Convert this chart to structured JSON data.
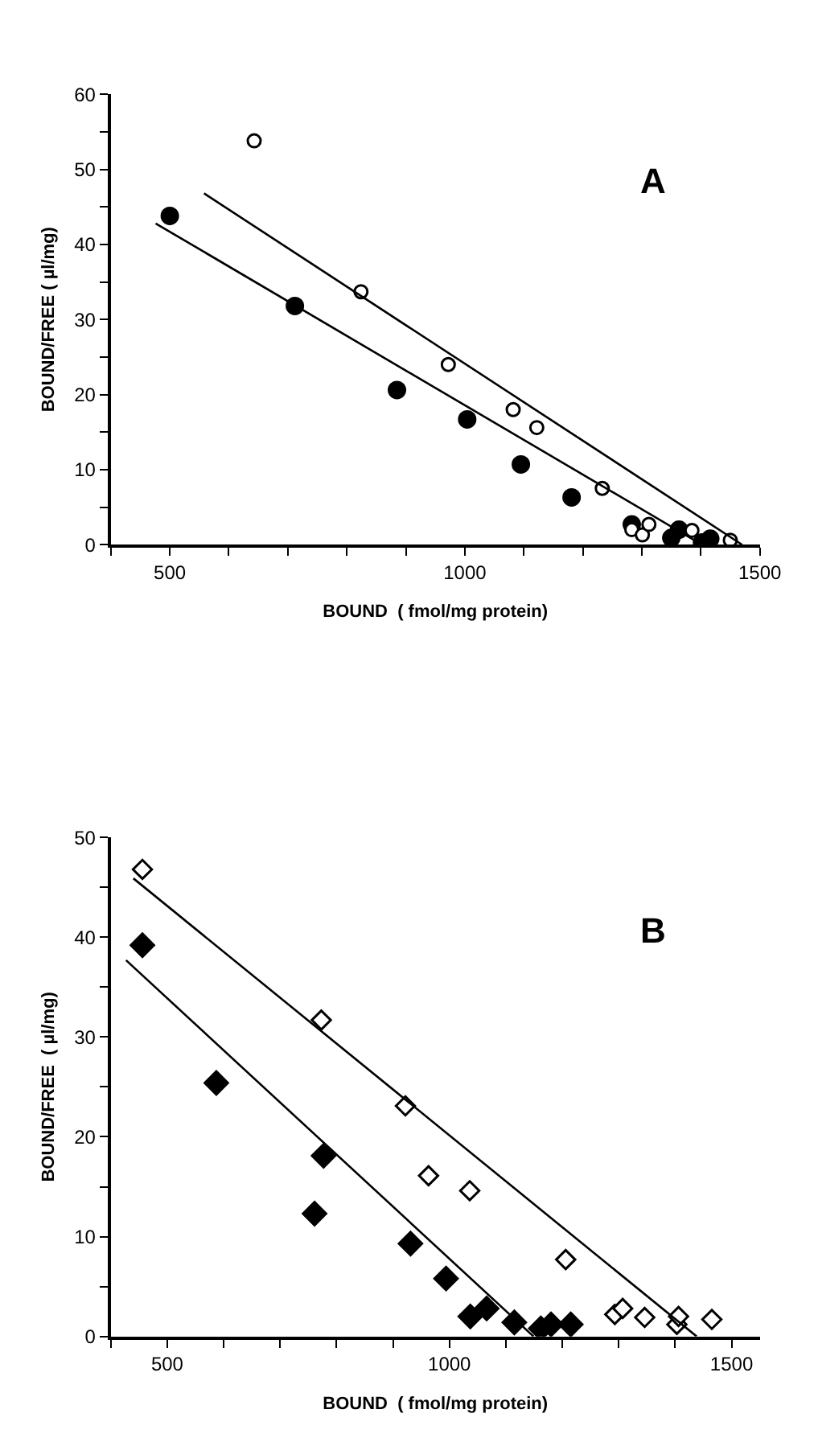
{
  "chart_data": [
    {
      "type": "scatter",
      "xlabel": "BOUND  ( fmol/mg protein)",
      "ylabel": "BOUND/FREE ( µl/mg)",
      "annotations": [
        "A"
      ],
      "xlim": [
        400,
        1500
      ],
      "ylim": [
        0,
        60
      ],
      "xticks": [
        {
          "value": 400,
          "label": null
        },
        500,
        {
          "value": 600,
          "label": null
        },
        {
          "value": 700,
          "label": null
        },
        {
          "value": 800,
          "label": null
        },
        {
          "value": 900,
          "label": null
        },
        1000,
        {
          "value": 1100,
          "label": null
        },
        {
          "value": 1200,
          "label": null
        },
        {
          "value": 1300,
          "label": null
        },
        {
          "value": 1400,
          "label": null
        },
        1500
      ],
      "yticks": [
        0,
        {
          "value": 5,
          "label": null
        },
        10,
        {
          "value": 15,
          "label": null
        },
        20,
        {
          "value": 25,
          "label": null
        },
        30,
        {
          "value": 35,
          "label": null
        },
        40,
        {
          "value": 45,
          "label": null
        },
        50,
        {
          "value": 55,
          "label": null
        },
        60
      ],
      "series": [
        {
          "marker": "circle",
          "color": "#000000",
          "x": [
            500,
            712,
            885,
            1004,
            1095,
            1181,
            1283,
            1350,
            1363,
            1402,
            1416
          ],
          "values": [
            43.8,
            31.8,
            20.6,
            16.7,
            10.7,
            6.3,
            2.7,
            0.9,
            2.0,
            0.3,
            0.8
          ]
        },
        {
          "marker": "circle",
          "color": "#ffffff",
          "x": [
            643,
            824,
            972,
            1082,
            1122,
            1233,
            1283,
            1301,
            1312,
            1385,
            1450
          ],
          "values": [
            53.8,
            33.7,
            24.0,
            18.0,
            15.6,
            7.5,
            2.0,
            1.3,
            2.7,
            1.9,
            0.6
          ]
        },
        {
          "type": "line",
          "marker": "none",
          "color": "#000000",
          "x": [
            476,
            1402
          ],
          "values": [
            42.8,
            0
          ]
        },
        {
          "type": "line",
          "marker": "none",
          "color": "#000000",
          "x": [
            558,
            1470
          ],
          "values": [
            46.8,
            0
          ]
        }
      ]
    },
    {
      "type": "scatter",
      "xlabel": "BOUND  ( fmol/mg protein)",
      "ylabel": "BOUND/FREE  ( µl/mg)",
      "annotations": [
        "B"
      ],
      "xlim": [
        400,
        1550
      ],
      "ylim": [
        0,
        50
      ],
      "xticks": [
        {
          "value": 400,
          "label": null
        },
        500,
        {
          "value": 600,
          "label": null
        },
        {
          "value": 700,
          "label": null
        },
        {
          "value": 800,
          "label": null
        },
        {
          "value": 900,
          "label": null
        },
        1000,
        {
          "value": 1100,
          "label": null
        },
        {
          "value": 1200,
          "label": null
        },
        {
          "value": 1300,
          "label": null
        },
        {
          "value": 1400,
          "label": null
        },
        1500
      ],
      "yticks": [
        0,
        {
          "value": 5,
          "label": null
        },
        10,
        {
          "value": 15,
          "label": null
        },
        20,
        {
          "value": 25,
          "label": null
        },
        30,
        {
          "value": 35,
          "label": null
        },
        40,
        {
          "value": 45,
          "label": null
        },
        50
      ],
      "series": [
        {
          "marker": "diamond",
          "color": "#000000",
          "x": [
            456,
            587,
            777,
            761,
            931,
            994,
            1037,
            1066,
            1115,
            1162,
            1180,
            1215
          ],
          "values": [
            39.2,
            25.4,
            18.1,
            12.3,
            9.3,
            5.8,
            2.0,
            2.8,
            1.4,
            0.8,
            1.2,
            1.2
          ]
        },
        {
          "marker": "diamond",
          "color": "#ffffff",
          "x": [
            456,
            773,
            922,
            963,
            1036,
            1206,
            1293,
            1307,
            1346,
            1403,
            1406,
            1465
          ],
          "values": [
            46.8,
            31.7,
            23.1,
            16.1,
            14.6,
            7.7,
            2.2,
            2.8,
            1.9,
            1.2,
            2.0,
            1.7
          ]
        },
        {
          "type": "line",
          "marker": "none",
          "color": "#000000",
          "x": [
            427,
            1149
          ],
          "values": [
            37.7,
            0
          ]
        },
        {
          "type": "line",
          "marker": "none",
          "color": "#000000",
          "x": [
            440,
            1438
          ],
          "values": [
            45.9,
            0
          ]
        }
      ]
    }
  ]
}
